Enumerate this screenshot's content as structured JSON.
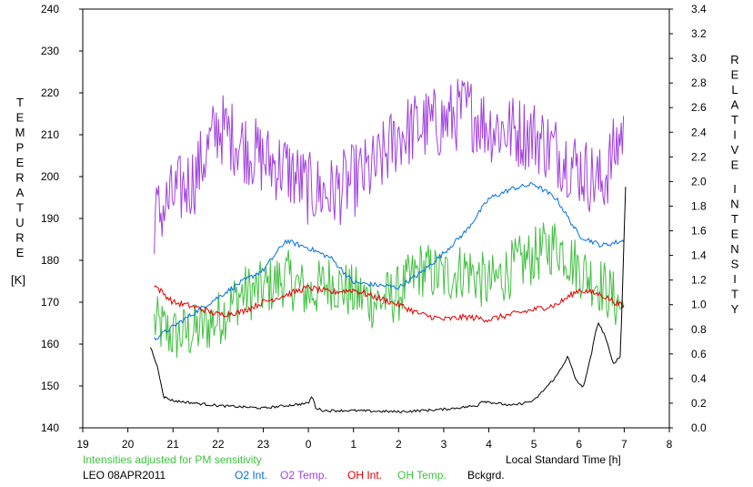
{
  "chart_data": {
    "type": "line",
    "y_left_label_letters": [
      "T",
      "E",
      "M",
      "P",
      "E",
      "R",
      "A",
      "T",
      "U",
      "R",
      "E"
    ],
    "y_left_unit": "[K]",
    "y_right_label_letters_1": [
      "R",
      "E",
      "L",
      "A",
      "T",
      "I",
      "V",
      "E"
    ],
    "y_right_label_letters_2": [
      "I",
      "N",
      "T",
      "E",
      "N",
      "S",
      "I",
      "T",
      "Y"
    ],
    "xlabel": "Local Standard Time [h]",
    "x_tick_labels": [
      "19",
      "20",
      "21",
      "22",
      "23",
      "0",
      "1",
      "2",
      "3",
      "4",
      "5",
      "6",
      "7",
      "8"
    ],
    "x_range_hours_since_19": [
      0,
      13
    ],
    "y_left_ticks": [
      "140",
      "150",
      "160",
      "170",
      "180",
      "190",
      "200",
      "210",
      "220",
      "230",
      "240"
    ],
    "y_left_range": [
      140,
      240
    ],
    "y_right_ticks": [
      "0.0",
      "0.2",
      "0.4",
      "0.6",
      "0.8",
      "1.0",
      "1.2",
      "1.4",
      "1.6",
      "1.8",
      "2.0",
      "2.2",
      "2.4",
      "2.6",
      "2.8",
      "3.0",
      "3.2",
      "3.4"
    ],
    "y_right_range": [
      0,
      3.4
    ],
    "note": "Intensities adjusted for PM sensitivity",
    "station": "LEO 08APR2011",
    "legend": [
      {
        "name": "O2 Int.",
        "color": "#0070e0",
        "axis": "right"
      },
      {
        "name": "O2 Temp.",
        "color": "#a040e0",
        "axis": "left"
      },
      {
        "name": "OH Int.",
        "color": "#e00000",
        "axis": "right"
      },
      {
        "name": "OH Temp.",
        "color": "#40c040",
        "axis": "left"
      },
      {
        "name": "Bckgrd.",
        "color": "#000000",
        "axis": "right"
      }
    ],
    "series": [
      {
        "name": "O2 Temp.",
        "color": "#a040e0",
        "axis": "left",
        "x": [
          "20:35",
          "21:00",
          "21:30",
          "22:00",
          "22:30",
          "23:00",
          "23:30",
          "0:00",
          "0:30",
          "1:00",
          "1:30",
          "2:00",
          "2:30",
          "3:00",
          "3:30",
          "4:00",
          "4:30",
          "5:00",
          "5:30",
          "6:00",
          "6:30",
          "7:00"
        ],
        "y": [
          190,
          195,
          200,
          212,
          208,
          204,
          202,
          197,
          196,
          199,
          202,
          210,
          212,
          213,
          216,
          212,
          211,
          210,
          206,
          202,
          198,
          212
        ]
      },
      {
        "name": "OH Temp.",
        "color": "#40c040",
        "axis": "left",
        "x": [
          "20:35",
          "21:00",
          "21:30",
          "22:00",
          "22:30",
          "23:00",
          "23:30",
          "0:00",
          "0:30",
          "1:00",
          "1:30",
          "2:00",
          "2:30",
          "3:00",
          "3:30",
          "4:00",
          "4:30",
          "5:00",
          "5:30",
          "6:00",
          "6:30",
          "7:00"
        ],
        "y": [
          165,
          162,
          163,
          166,
          172,
          173,
          176,
          172,
          175,
          172,
          170,
          172,
          178,
          176,
          178,
          174,
          178,
          181,
          184,
          178,
          174,
          168
        ]
      },
      {
        "name": "O2 Int.",
        "color": "#0070e0",
        "axis": "right",
        "x": [
          "20:35",
          "21:00",
          "21:30",
          "22:00",
          "22:30",
          "23:00",
          "23:30",
          "0:00",
          "0:30",
          "1:00",
          "1:30",
          "2:00",
          "2:30",
          "3:00",
          "3:30",
          "4:00",
          "4:30",
          "5:00",
          "5:30",
          "6:00",
          "6:30",
          "7:00"
        ],
        "y": [
          0.72,
          0.82,
          0.94,
          1.06,
          1.18,
          1.28,
          1.52,
          1.46,
          1.38,
          1.18,
          1.16,
          1.14,
          1.26,
          1.42,
          1.6,
          1.86,
          1.94,
          1.98,
          1.86,
          1.56,
          1.48,
          1.52
        ]
      },
      {
        "name": "OH Int.",
        "color": "#e00000",
        "axis": "right",
        "x": [
          "20:35",
          "21:00",
          "21:30",
          "22:00",
          "22:30",
          "23:00",
          "23:30",
          "0:00",
          "0:30",
          "1:00",
          "1:30",
          "2:00",
          "2:30",
          "3:00",
          "3:30",
          "4:00",
          "4:30",
          "5:00",
          "5:30",
          "6:00",
          "6:30",
          "7:00"
        ],
        "y": [
          1.16,
          1.02,
          0.98,
          0.92,
          0.94,
          1.02,
          1.08,
          1.14,
          1.1,
          1.12,
          1.06,
          1.0,
          0.92,
          0.88,
          0.9,
          0.88,
          0.92,
          0.96,
          1.0,
          1.12,
          1.08,
          0.98
        ]
      },
      {
        "name": "Bckgrd.",
        "color": "#000000",
        "axis": "right",
        "x": [
          "20:30",
          "20:40",
          "20:48",
          "21:00",
          "21:30",
          "22:00",
          "22:30",
          "23:00",
          "23:30",
          "0:00",
          "0:05",
          "0:10",
          "0:20",
          "1:00",
          "2:00",
          "3:00",
          "3:45",
          "3:50",
          "4:30",
          "5:00",
          "5:30",
          "5:45",
          "5:55",
          "6:05",
          "6:15",
          "6:25",
          "6:35",
          "6:45",
          "6:55",
          "7:02"
        ],
        "y": [
          0.66,
          0.48,
          0.25,
          0.22,
          0.2,
          0.18,
          0.17,
          0.16,
          0.18,
          0.2,
          0.26,
          0.16,
          0.14,
          0.14,
          0.13,
          0.15,
          0.18,
          0.22,
          0.18,
          0.22,
          0.42,
          0.58,
          0.4,
          0.32,
          0.56,
          0.86,
          0.74,
          0.52,
          0.58,
          2.0
        ]
      }
    ]
  }
}
